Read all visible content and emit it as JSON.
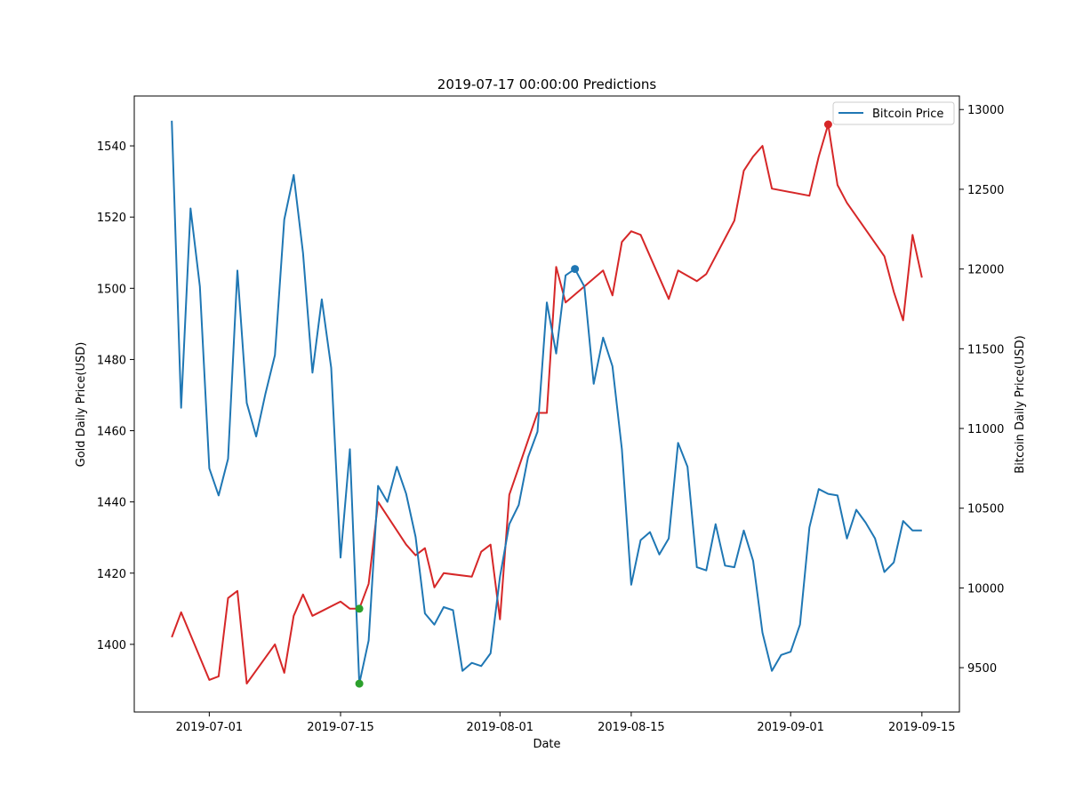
{
  "chart_data": {
    "type": "line",
    "title": "2019-07-17 00:00:00 Predictions",
    "xlabel": "Date",
    "ylabel_left": "Gold Daily Price(USD)",
    "ylabel_right": "Bitcoin Daily Price(USD)",
    "x_ticks": [
      "2019-07-01",
      "2019-07-15",
      "2019-08-01",
      "2019-08-15",
      "2019-09-01",
      "2019-09-15"
    ],
    "y_left_ticks": [
      "1400",
      "1420",
      "1440",
      "1460",
      "1480",
      "1500",
      "1520",
      "1540"
    ],
    "y_right_ticks": [
      "9500",
      "10000",
      "10500",
      "11000",
      "11500",
      "12000",
      "12500",
      "13000"
    ],
    "xlim": [
      "2019-06-23",
      "2019-09-19"
    ],
    "y_left_lim": [
      1381,
      1554
    ],
    "y_right_lim": [
      9222,
      13085
    ],
    "grid": false,
    "legend_position": "top-right",
    "legend": [
      "Bitcoin Price"
    ],
    "series": [
      {
        "name": "",
        "axis": "left",
        "color": "#d62728",
        "points": [
          [
            "2019-06-27",
            1402
          ],
          [
            "2019-06-28",
            1409
          ],
          [
            "2019-07-01",
            1390
          ],
          [
            "2019-07-02",
            1391
          ],
          [
            "2019-07-03",
            1413
          ],
          [
            "2019-07-04",
            1415
          ],
          [
            "2019-07-05",
            1389
          ],
          [
            "2019-07-08",
            1400
          ],
          [
            "2019-07-09",
            1392
          ],
          [
            "2019-07-10",
            1408
          ],
          [
            "2019-07-11",
            1414
          ],
          [
            "2019-07-12",
            1408
          ],
          [
            "2019-07-15",
            1412
          ],
          [
            "2019-07-16",
            1410
          ],
          [
            "2019-07-17",
            1410
          ],
          [
            "2019-07-18",
            1417
          ],
          [
            "2019-07-19",
            1440
          ],
          [
            "2019-07-22",
            1428
          ],
          [
            "2019-07-23",
            1425
          ],
          [
            "2019-07-24",
            1427
          ],
          [
            "2019-07-25",
            1416
          ],
          [
            "2019-07-26",
            1420
          ],
          [
            "2019-07-29",
            1419
          ],
          [
            "2019-07-30",
            1426
          ],
          [
            "2019-07-31",
            1428
          ],
          [
            "2019-08-01",
            1407
          ],
          [
            "2019-08-02",
            1442
          ],
          [
            "2019-08-05",
            1465
          ],
          [
            "2019-08-06",
            1465
          ],
          [
            "2019-08-07",
            1506
          ],
          [
            "2019-08-08",
            1496
          ],
          [
            "2019-08-12",
            1505
          ],
          [
            "2019-08-13",
            1498
          ],
          [
            "2019-08-14",
            1513
          ],
          [
            "2019-08-15",
            1516
          ],
          [
            "2019-08-16",
            1515
          ],
          [
            "2019-08-19",
            1497
          ],
          [
            "2019-08-20",
            1505
          ],
          [
            "2019-08-22",
            1502
          ],
          [
            "2019-08-23",
            1504
          ],
          [
            "2019-08-26",
            1519
          ],
          [
            "2019-08-27",
            1533
          ],
          [
            "2019-08-28",
            1537
          ],
          [
            "2019-08-29",
            1540
          ],
          [
            "2019-08-30",
            1528
          ],
          [
            "2019-09-03",
            1526
          ],
          [
            "2019-09-04",
            1537
          ],
          [
            "2019-09-05",
            1546
          ],
          [
            "2019-09-06",
            1529
          ],
          [
            "2019-09-07",
            1524
          ],
          [
            "2019-09-11",
            1509
          ],
          [
            "2019-09-12",
            1499
          ],
          [
            "2019-09-13",
            1491
          ],
          [
            "2019-09-14",
            1515
          ],
          [
            "2019-09-15",
            1503
          ]
        ]
      },
      {
        "name": "Bitcoin Price",
        "axis": "right",
        "color": "#1f77b4",
        "points": [
          [
            "2019-06-27",
            12930
          ],
          [
            "2019-06-28",
            11130
          ],
          [
            "2019-06-29",
            12380
          ],
          [
            "2019-06-30",
            11890
          ],
          [
            "2019-07-01",
            10750
          ],
          [
            "2019-07-02",
            10580
          ],
          [
            "2019-07-03",
            10810
          ],
          [
            "2019-07-04",
            11990
          ],
          [
            "2019-07-05",
            11160
          ],
          [
            "2019-07-06",
            10950
          ],
          [
            "2019-07-07",
            11220
          ],
          [
            "2019-07-08",
            11460
          ],
          [
            "2019-07-09",
            12310
          ],
          [
            "2019-07-10",
            12590
          ],
          [
            "2019-07-11",
            12100
          ],
          [
            "2019-07-12",
            11350
          ],
          [
            "2019-07-13",
            11810
          ],
          [
            "2019-07-14",
            11380
          ],
          [
            "2019-07-15",
            10190
          ],
          [
            "2019-07-16",
            10870
          ],
          [
            "2019-07-17",
            9400
          ],
          [
            "2019-07-18",
            9670
          ],
          [
            "2019-07-19",
            10640
          ],
          [
            "2019-07-20",
            10540
          ],
          [
            "2019-07-21",
            10760
          ],
          [
            "2019-07-22",
            10590
          ],
          [
            "2019-07-23",
            10320
          ],
          [
            "2019-07-24",
            9840
          ],
          [
            "2019-07-25",
            9770
          ],
          [
            "2019-07-26",
            9880
          ],
          [
            "2019-07-27",
            9860
          ],
          [
            "2019-07-28",
            9480
          ],
          [
            "2019-07-29",
            9530
          ],
          [
            "2019-07-30",
            9510
          ],
          [
            "2019-07-31",
            9590
          ],
          [
            "2019-08-01",
            10070
          ],
          [
            "2019-08-02",
            10400
          ],
          [
            "2019-08-03",
            10520
          ],
          [
            "2019-08-04",
            10820
          ],
          [
            "2019-08-05",
            10980
          ],
          [
            "2019-08-06",
            11790
          ],
          [
            "2019-08-07",
            11470
          ],
          [
            "2019-08-08",
            11960
          ],
          [
            "2019-08-09",
            12000
          ],
          [
            "2019-08-10",
            11890
          ],
          [
            "2019-08-11",
            11280
          ],
          [
            "2019-08-12",
            11570
          ],
          [
            "2019-08-13",
            11390
          ],
          [
            "2019-08-14",
            10870
          ],
          [
            "2019-08-15",
            10020
          ],
          [
            "2019-08-16",
            10300
          ],
          [
            "2019-08-17",
            10350
          ],
          [
            "2019-08-18",
            10210
          ],
          [
            "2019-08-19",
            10310
          ],
          [
            "2019-08-20",
            10910
          ],
          [
            "2019-08-21",
            10760
          ],
          [
            "2019-08-22",
            10130
          ],
          [
            "2019-08-23",
            10110
          ],
          [
            "2019-08-24",
            10400
          ],
          [
            "2019-08-25",
            10140
          ],
          [
            "2019-08-26",
            10130
          ],
          [
            "2019-08-27",
            10360
          ],
          [
            "2019-08-28",
            10170
          ],
          [
            "2019-08-29",
            9720
          ],
          [
            "2019-08-30",
            9480
          ],
          [
            "2019-08-31",
            9580
          ],
          [
            "2019-09-01",
            9600
          ],
          [
            "2019-09-02",
            9770
          ],
          [
            "2019-09-03",
            10380
          ],
          [
            "2019-09-04",
            10620
          ],
          [
            "2019-09-05",
            10590
          ],
          [
            "2019-09-06",
            10580
          ],
          [
            "2019-09-07",
            10310
          ],
          [
            "2019-09-08",
            10490
          ],
          [
            "2019-09-09",
            10410
          ],
          [
            "2019-09-10",
            10310
          ],
          [
            "2019-09-11",
            10100
          ],
          [
            "2019-09-12",
            10160
          ],
          [
            "2019-09-13",
            10420
          ],
          [
            "2019-09-14",
            10360
          ],
          [
            "2019-09-15",
            10360
          ]
        ]
      }
    ],
    "markers": [
      {
        "date": "2019-07-17",
        "axis": "left",
        "value": 1410,
        "color": "#2ca02c"
      },
      {
        "date": "2019-07-17",
        "axis": "right",
        "value": 9400,
        "color": "#2ca02c"
      },
      {
        "date": "2019-08-09",
        "axis": "right",
        "value": 12000,
        "color": "#1f77b4"
      },
      {
        "date": "2019-09-05",
        "axis": "left",
        "value": 1546,
        "color": "#d62728"
      }
    ]
  }
}
